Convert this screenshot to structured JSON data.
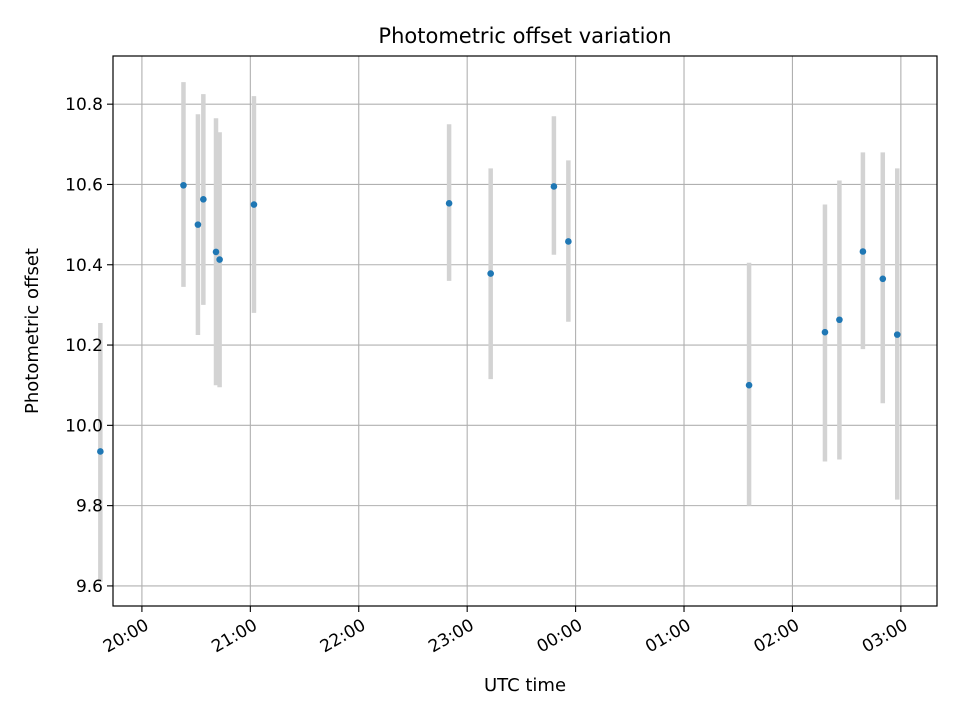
{
  "chart_data": {
    "type": "scatter",
    "title": "Photometric offset variation",
    "xlabel": "UTC time",
    "ylabel": "Photometric offset",
    "x_scale": "time",
    "xlim": [
      "19:44",
      "03:20"
    ],
    "ylim": [
      9.55,
      10.92
    ],
    "x_ticks": [
      "20:00",
      "21:00",
      "22:00",
      "23:00",
      "00:00",
      "01:00",
      "02:00",
      "03:00"
    ],
    "y_ticks": [
      "9.6",
      "9.8",
      "10.0",
      "10.2",
      "10.4",
      "10.6",
      "10.8"
    ],
    "grid": true,
    "legend": "none",
    "point_color": "#1f77b4",
    "errorbar_color": "#d3d3d3",
    "points": [
      {
        "time": "19:37",
        "value": 9.935,
        "error_low": 9.61,
        "error_high": 10.255
      },
      {
        "time": "20:23",
        "value": 10.598,
        "error_low": 10.345,
        "error_high": 10.855
      },
      {
        "time": "20:31",
        "value": 10.5,
        "error_low": 10.225,
        "error_high": 10.775
      },
      {
        "time": "20:34",
        "value": 10.563,
        "error_low": 10.3,
        "error_high": 10.825
      },
      {
        "time": "20:41",
        "value": 10.432,
        "error_low": 10.1,
        "error_high": 10.765
      },
      {
        "time": "20:43",
        "value": 10.413,
        "error_low": 10.095,
        "error_high": 10.73
      },
      {
        "time": "21:02",
        "value": 10.55,
        "error_low": 10.28,
        "error_high": 10.82
      },
      {
        "time": "22:50",
        "value": 10.553,
        "error_low": 10.36,
        "error_high": 10.75
      },
      {
        "time": "23:13",
        "value": 10.378,
        "error_low": 10.115,
        "error_high": 10.64
      },
      {
        "time": "23:48",
        "value": 10.595,
        "error_low": 10.425,
        "error_high": 10.77
      },
      {
        "time": "23:56",
        "value": 10.458,
        "error_low": 10.258,
        "error_high": 10.66
      },
      {
        "time": "01:36",
        "value": 10.1,
        "error_low": 9.8,
        "error_high": 10.405
      },
      {
        "time": "02:18",
        "value": 10.232,
        "error_low": 9.91,
        "error_high": 10.55
      },
      {
        "time": "02:26",
        "value": 10.263,
        "error_low": 9.915,
        "error_high": 10.61
      },
      {
        "time": "02:39",
        "value": 10.433,
        "error_low": 10.19,
        "error_high": 10.68
      },
      {
        "time": "02:50",
        "value": 10.365,
        "error_low": 10.055,
        "error_high": 10.68
      },
      {
        "time": "02:58",
        "value": 10.226,
        "error_low": 9.815,
        "error_high": 10.64
      }
    ]
  }
}
